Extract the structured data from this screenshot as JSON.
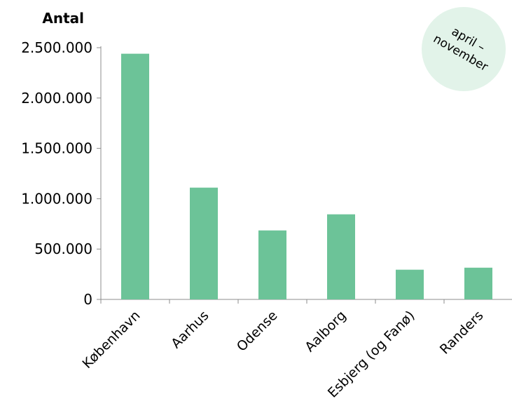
{
  "chart_data": {
    "type": "bar",
    "ylabel": "Antal",
    "categories": [
      "København",
      "Aarhus",
      "Odense",
      "Aalborg",
      "Esbjerg (og Fanø)",
      "Randers"
    ],
    "values": [
      2440000,
      1110000,
      685000,
      845000,
      295000,
      315000
    ],
    "ylim": [
      0,
      2500000
    ],
    "yticks": [
      0,
      500000,
      1000000,
      1500000,
      2000000,
      2500000
    ],
    "ytick_labels": [
      "0",
      "500.000",
      "1.000.000",
      "1.500.000",
      "2.000.000",
      "2.500.000"
    ],
    "grid": false,
    "bar_color": "#6cc398",
    "annotation": {
      "lines": [
        "april –",
        "november"
      ],
      "background": "#e2f3e9"
    }
  }
}
